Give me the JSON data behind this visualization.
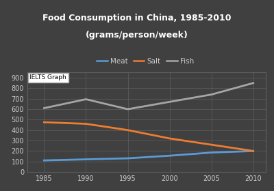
{
  "title_line1": "Food Consumption in China, 1985-2010",
  "title_line2": "(grams/person/week)",
  "years": [
    1985,
    1990,
    1995,
    2000,
    2005,
    2010
  ],
  "meat": [
    110,
    120,
    130,
    155,
    185,
    200
  ],
  "salt": [
    475,
    460,
    400,
    320,
    260,
    200
  ],
  "fish": [
    610,
    695,
    600,
    670,
    740,
    850
  ],
  "meat_color": "#5b9bd5",
  "salt_color": "#ed7d31",
  "fish_color": "#a6a6a6",
  "fig_bg_color": "#404040",
  "plot_bg_color": "#404040",
  "title_bg_color": "#464646",
  "title_color": "#ffffff",
  "tick_color": "#cccccc",
  "grid_color": "#606060",
  "ylim": [
    0,
    950
  ],
  "yticks": [
    0,
    100,
    200,
    300,
    400,
    500,
    600,
    700,
    800,
    900
  ],
  "xticks": [
    1985,
    1990,
    1995,
    2000,
    2005,
    2010
  ],
  "watermark_text": "IELTS Graph",
  "line_width": 2.0
}
